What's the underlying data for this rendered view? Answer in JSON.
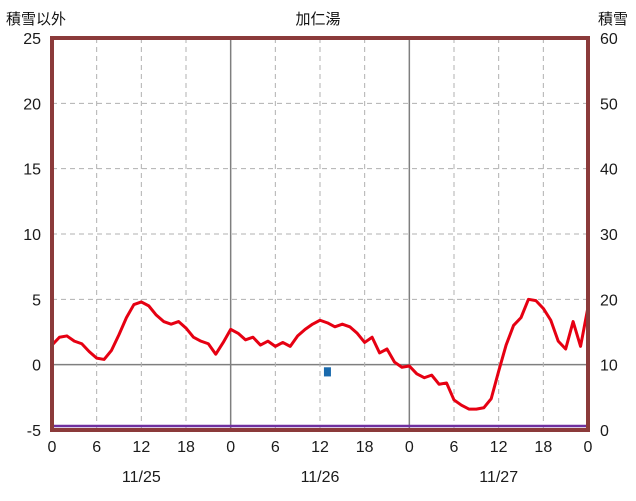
{
  "chart_data": {
    "type": "line",
    "title": "加仁湯",
    "left_axis": {
      "title": "積雪以外",
      "min": -5,
      "max": 25,
      "ticks": [
        25,
        20,
        15,
        10,
        5,
        0,
        -5
      ]
    },
    "right_axis": {
      "title": "積雪",
      "min": 0,
      "max": 60,
      "ticks": [
        60,
        50,
        40,
        30,
        20,
        10,
        0
      ]
    },
    "x_axis": {
      "hours_total": 72,
      "tick_step": 6,
      "tick_labels": [
        "0",
        "6",
        "12",
        "18",
        "0",
        "6",
        "12",
        "18",
        "0",
        "6",
        "12",
        "18",
        "0"
      ],
      "date_labels": [
        "11/25",
        "11/26",
        "11/27"
      ]
    },
    "colors": {
      "line_red": "#e60012",
      "bar_blue": "#1a6aad",
      "snow_purple": "#7030a0",
      "frame": "#8b3a3a",
      "grid_solid": "#7f7f7f",
      "grid_dashed": "#b0b0b0",
      "text": "#1a1a1a"
    },
    "series": [
      {
        "name": "snow-depth-line",
        "axis": "right",
        "color": "#7030a0",
        "constant": 0
      },
      {
        "name": "precipitation-bar",
        "type": "bar",
        "axis": "left",
        "color": "#1a6aad",
        "bars": [
          {
            "hour": 37,
            "top": -0.2,
            "bottom": -0.9
          }
        ]
      },
      {
        "name": "temperature-line",
        "axis": "left",
        "color": "#e60012",
        "start_hour": 0,
        "step_hours": 1,
        "values": [
          1.5,
          2.1,
          2.2,
          1.8,
          1.6,
          1.0,
          0.5,
          0.4,
          1.1,
          2.3,
          3.6,
          4.6,
          4.8,
          4.5,
          3.8,
          3.3,
          3.1,
          3.3,
          2.8,
          2.1,
          1.8,
          1.6,
          0.8,
          1.7,
          2.7,
          2.4,
          1.9,
          2.1,
          1.5,
          1.8,
          1.4,
          1.7,
          1.4,
          2.2,
          2.7,
          3.1,
          3.4,
          3.2,
          2.9,
          3.1,
          2.9,
          2.4,
          1.7,
          2.1,
          0.9,
          1.2,
          0.2,
          -0.2,
          -0.1,
          -0.7,
          -1.0,
          -0.8,
          -1.5,
          -1.4,
          -2.7,
          -3.1,
          -3.4,
          -3.4,
          -3.3,
          -2.6,
          -0.5,
          1.5,
          3.0,
          3.6,
          5.0,
          4.9,
          4.3,
          3.4,
          1.8,
          1.2,
          3.3,
          1.4,
          4.4
        ]
      }
    ]
  }
}
